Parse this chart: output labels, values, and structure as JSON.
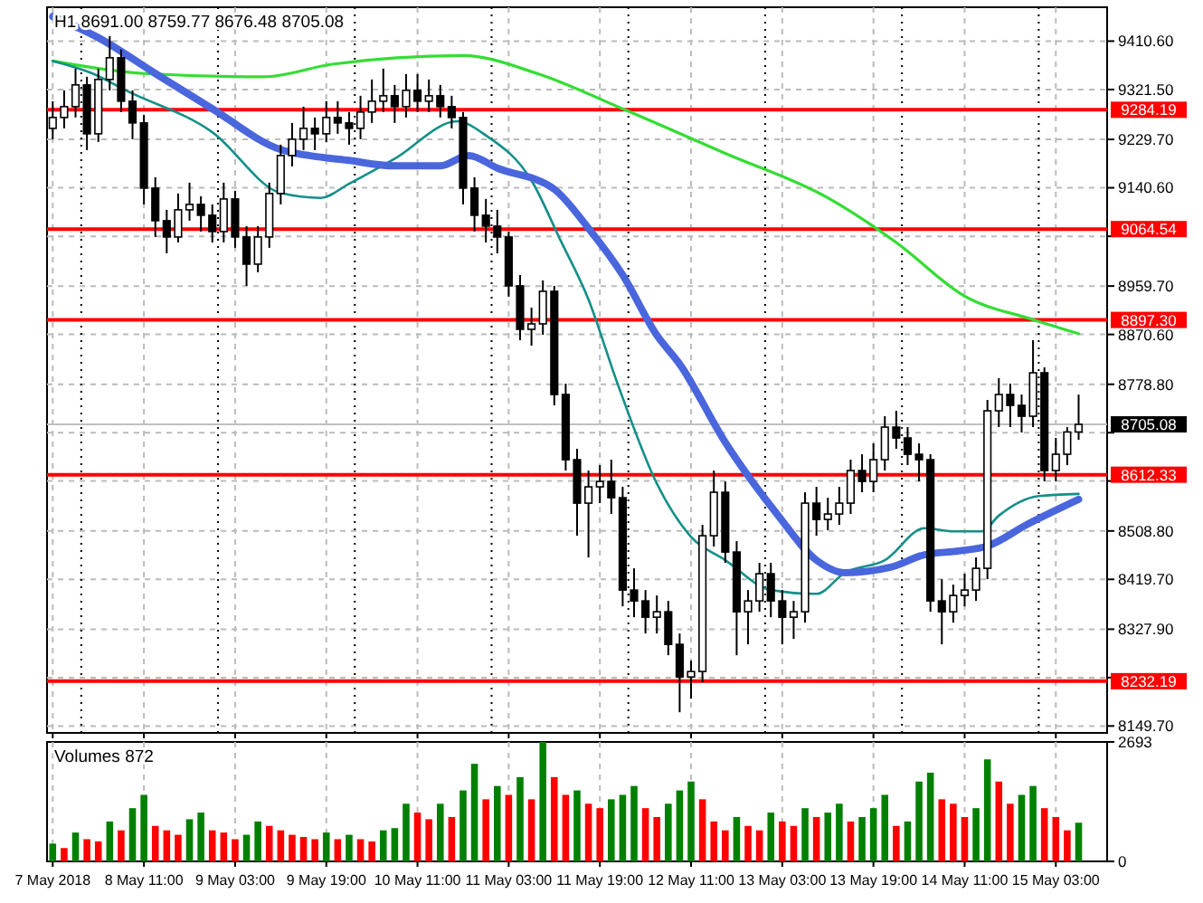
{
  "chart_data": [
    {
      "type": "candlestick",
      "title": "H1  8691.00 8759.77 8676.48 8705.08",
      "x": [
        "2018-05-07T19:00",
        "2018-05-07T21:00",
        "2018-05-07T23:00",
        "2018-05-08T01:00",
        "2018-05-08T03:00",
        "2018-05-08T05:00",
        "2018-05-08T07:00",
        "2018-05-08T09:00",
        "2018-05-08T11:00",
        "2018-05-08T13:00",
        "2018-05-08T15:00",
        "2018-05-08T17:00",
        "2018-05-08T19:00",
        "2018-05-08T21:00",
        "2018-05-08T23:00",
        "2018-05-09T01:00",
        "2018-05-09T03:00",
        "2018-05-09T05:00",
        "2018-05-09T07:00",
        "2018-05-09T09:00",
        "2018-05-09T11:00",
        "2018-05-09T13:00",
        "2018-05-09T15:00",
        "2018-05-09T17:00",
        "2018-05-09T19:00",
        "2018-05-09T21:00",
        "2018-05-09T23:00",
        "2018-05-10T01:00",
        "2018-05-10T03:00",
        "2018-05-10T05:00",
        "2018-05-10T07:00",
        "2018-05-10T09:00",
        "2018-05-10T11:00",
        "2018-05-10T13:00",
        "2018-05-10T15:00",
        "2018-05-10T17:00",
        "2018-05-10T19:00",
        "2018-05-10T21:00",
        "2018-05-10T23:00",
        "2018-05-11T01:00",
        "2018-05-11T03:00",
        "2018-05-11T05:00",
        "2018-05-11T07:00",
        "2018-05-11T09:00",
        "2018-05-11T11:00",
        "2018-05-11T13:00",
        "2018-05-11T15:00",
        "2018-05-11T17:00",
        "2018-05-11T19:00",
        "2018-05-11T21:00",
        "2018-05-11T23:00",
        "2018-05-12T01:00",
        "2018-05-12T03:00",
        "2018-05-12T05:00",
        "2018-05-12T07:00",
        "2018-05-12T09:00",
        "2018-05-12T11:00",
        "2018-05-12T13:00",
        "2018-05-12T15:00",
        "2018-05-12T17:00",
        "2018-05-12T19:00",
        "2018-05-12T21:00",
        "2018-05-12T23:00",
        "2018-05-13T01:00",
        "2018-05-13T03:00",
        "2018-05-13T05:00",
        "2018-05-13T07:00",
        "2018-05-13T09:00",
        "2018-05-13T11:00",
        "2018-05-13T13:00",
        "2018-05-13T15:00",
        "2018-05-13T17:00",
        "2018-05-13T19:00",
        "2018-05-13T21:00",
        "2018-05-13T23:00",
        "2018-05-14T01:00",
        "2018-05-14T03:00",
        "2018-05-14T05:00",
        "2018-05-14T07:00",
        "2018-05-14T09:00",
        "2018-05-14T11:00",
        "2018-05-14T13:00",
        "2018-05-14T15:00",
        "2018-05-14T17:00",
        "2018-05-14T19:00",
        "2018-05-14T21:00",
        "2018-05-14T23:00",
        "2018-05-15T01:00",
        "2018-05-15T03:00",
        "2018-05-15T05:00",
        "2018-05-15T07:00"
      ],
      "ohlc": [
        [
          9250,
          9300,
          9230,
          9270
        ],
        [
          9270,
          9320,
          9250,
          9290
        ],
        [
          9290,
          9360,
          9270,
          9330
        ],
        [
          9330,
          9345,
          9210,
          9240
        ],
        [
          9240,
          9360,
          9225,
          9340
        ],
        [
          9340,
          9420,
          9320,
          9380
        ],
        [
          9380,
          9395,
          9280,
          9300
        ],
        [
          9300,
          9320,
          9230,
          9260
        ],
        [
          9260,
          9275,
          9110,
          9140
        ],
        [
          9140,
          9160,
          9050,
          9080
        ],
        [
          9080,
          9100,
          9020,
          9050
        ],
        [
          9050,
          9130,
          9040,
          9100
        ],
        [
          9100,
          9150,
          9080,
          9110
        ],
        [
          9110,
          9125,
          9060,
          9090
        ],
        [
          9090,
          9110,
          9040,
          9060
        ],
        [
          9060,
          9150,
          9040,
          9120
        ],
        [
          9120,
          9135,
          9030,
          9050
        ],
        [
          9050,
          9070,
          8960,
          9000
        ],
        [
          9000,
          9070,
          8985,
          9050
        ],
        [
          9050,
          9150,
          9030,
          9130
        ],
        [
          9130,
          9220,
          9110,
          9200
        ],
        [
          9200,
          9260,
          9180,
          9230
        ],
        [
          9230,
          9290,
          9210,
          9250
        ],
        [
          9250,
          9270,
          9210,
          9240
        ],
        [
          9240,
          9300,
          9225,
          9270
        ],
        [
          9270,
          9300,
          9240,
          9260
        ],
        [
          9260,
          9280,
          9220,
          9250
        ],
        [
          9250,
          9310,
          9230,
          9280
        ],
        [
          9280,
          9340,
          9260,
          9300
        ],
        [
          9300,
          9360,
          9280,
          9310
        ],
        [
          9310,
          9330,
          9260,
          9290
        ],
        [
          9290,
          9350,
          9270,
          9320
        ],
        [
          9320,
          9350,
          9280,
          9300
        ],
        [
          9300,
          9340,
          9280,
          9310
        ],
        [
          9310,
          9330,
          9270,
          9290
        ],
        [
          9290,
          9310,
          9250,
          9270
        ],
        [
          9270,
          9280,
          9110,
          9140
        ],
        [
          9140,
          9160,
          9060,
          9090
        ],
        [
          9090,
          9120,
          9040,
          9070
        ],
        [
          9070,
          9100,
          9020,
          9050
        ],
        [
          9050,
          9060,
          8940,
          8960
        ],
        [
          8960,
          8980,
          8860,
          8880
        ],
        [
          8880,
          8920,
          8850,
          8890
        ],
        [
          8890,
          8970,
          8870,
          8950
        ],
        [
          8950,
          8960,
          8740,
          8760
        ],
        [
          8760,
          8780,
          8620,
          8640
        ],
        [
          8640,
          8660,
          8500,
          8560
        ],
        [
          8560,
          8620,
          8460,
          8590
        ],
        [
          8590,
          8630,
          8560,
          8600
        ],
        [
          8600,
          8640,
          8540,
          8570
        ],
        [
          8570,
          8590,
          8370,
          8400
        ],
        [
          8400,
          8440,
          8350,
          8380
        ],
        [
          8380,
          8400,
          8320,
          8350
        ],
        [
          8350,
          8390,
          8320,
          8360
        ],
        [
          8360,
          8380,
          8280,
          8300
        ],
        [
          8300,
          8320,
          8175,
          8240
        ],
        [
          8240,
          8270,
          8200,
          8250
        ],
        [
          8250,
          8520,
          8230,
          8500
        ],
        [
          8500,
          8620,
          8480,
          8580
        ],
        [
          8580,
          8600,
          8450,
          8470
        ],
        [
          8470,
          8490,
          8280,
          8360
        ],
        [
          8360,
          8400,
          8300,
          8380
        ],
        [
          8380,
          8450,
          8360,
          8430
        ],
        [
          8430,
          8450,
          8350,
          8380
        ],
        [
          8380,
          8400,
          8300,
          8350
        ],
        [
          8350,
          8380,
          8310,
          8360
        ],
        [
          8360,
          8580,
          8340,
          8560
        ],
        [
          8560,
          8590,
          8500,
          8530
        ],
        [
          8530,
          8570,
          8510,
          8540
        ],
        [
          8540,
          8590,
          8520,
          8560
        ],
        [
          8560,
          8640,
          8540,
          8620
        ],
        [
          8620,
          8650,
          8580,
          8600
        ],
        [
          8600,
          8670,
          8580,
          8640
        ],
        [
          8640,
          8720,
          8620,
          8700
        ],
        [
          8700,
          8730,
          8660,
          8680
        ],
        [
          8680,
          8700,
          8630,
          8650
        ],
        [
          8650,
          8670,
          8600,
          8640
        ],
        [
          8640,
          8650,
          8360,
          8380
        ],
        [
          8380,
          8420,
          8300,
          8360
        ],
        [
          8360,
          8410,
          8340,
          8390
        ],
        [
          8390,
          8430,
          8370,
          8400
        ],
        [
          8400,
          8460,
          8380,
          8440
        ],
        [
          8440,
          8750,
          8420,
          8730
        ],
        [
          8730,
          8790,
          8700,
          8760
        ],
        [
          8760,
          8780,
          8700,
          8740
        ],
        [
          8740,
          8760,
          8690,
          8720
        ],
        [
          8720,
          8860,
          8700,
          8800
        ],
        [
          8800,
          8810,
          8600,
          8620
        ],
        [
          8620,
          8680,
          8600,
          8650
        ],
        [
          8650,
          8700,
          8630,
          8691
        ],
        [
          8691.0,
          8759.77,
          8676.48,
          8705.08
        ]
      ],
      "series": [
        {
          "type": "line",
          "color": "#33dd33",
          "x": [
            "2018-05-07T19:00",
            "2018-05-08T11:00",
            "2018-05-09T08:00",
            "2018-05-09T20:00",
            "2018-05-10T19:00",
            "2018-05-11T08:00",
            "2018-05-11T23:00",
            "2018-05-12T17:00",
            "2018-05-13T11:00",
            "2018-05-13T23:00",
            "2018-05-14T11:00",
            "2018-05-14T23:00",
            "2018-05-15T07:00"
          ],
          "values": [
            9374,
            9351,
            9345,
            9368,
            9384,
            9351,
            9286,
            9204,
            9122,
            9040,
            8941,
            8898,
            8872
          ]
        },
        {
          "type": "line",
          "color": "#138f88",
          "x": [
            "2018-05-07T19:00",
            "2018-05-08T02:00",
            "2018-05-08T08:00",
            "2018-05-08T23:00",
            "2018-05-09T11:00",
            "2018-05-09T18:00",
            "2018-05-09T23:00",
            "2018-05-10T07:00",
            "2018-05-10T18:00",
            "2018-05-10T23:00",
            "2018-05-11T07:00",
            "2018-05-11T12:00",
            "2018-05-11T17:00",
            "2018-05-11T22:00",
            "2018-05-12T05:00",
            "2018-05-12T11:00",
            "2018-05-12T17:00",
            "2018-05-13T01:00",
            "2018-05-13T09:00",
            "2018-05-13T14:00",
            "2018-05-13T21:00",
            "2018-05-14T04:00",
            "2018-05-14T09:00",
            "2018-05-14T14:00",
            "2018-05-14T17:00",
            "2018-05-15T00:00",
            "2018-05-15T07:00"
          ],
          "values": [
            9374,
            9351,
            9319,
            9243,
            9131,
            9122,
            9148,
            9194,
            9263,
            9237,
            9154,
            9046,
            8935,
            8783,
            8596,
            8498,
            8455,
            8400,
            8393,
            8432,
            8455,
            8514,
            8508,
            8508,
            8537,
            8573,
            8577
          ]
        },
        {
          "type": "line",
          "color": "#4a66dd",
          "x": [
            "2018-05-07T19:00",
            "2018-05-08T03:00",
            "2018-05-08T13:00",
            "2018-05-08T23:00",
            "2018-05-09T11:00",
            "2018-05-09T23:00",
            "2018-05-10T07:00",
            "2018-05-10T15:00",
            "2018-05-10T20:00",
            "2018-05-11T01:00",
            "2018-05-11T11:00",
            "2018-05-11T17:00",
            "2018-05-11T23:00",
            "2018-05-12T05:00",
            "2018-05-12T09:00",
            "2018-05-12T17:00",
            "2018-05-13T02:00",
            "2018-05-13T09:00",
            "2018-05-13T14:00",
            "2018-05-13T22:00",
            "2018-05-14T04:00",
            "2018-05-14T10:00",
            "2018-05-14T15:00",
            "2018-05-14T22:00",
            "2018-05-15T07:00"
          ],
          "values": [
            9456,
            9417,
            9351,
            9286,
            9211,
            9191,
            9181,
            9181,
            9200,
            9177,
            9138,
            9066,
            8980,
            8869,
            8816,
            8672,
            8541,
            8455,
            8432,
            8442,
            8465,
            8472,
            8481,
            8521,
            8567
          ]
        }
      ],
      "ref_lines": [
        {
          "axis": "y",
          "value": 9284.19,
          "label": "9284.19",
          "color": "#ff0000"
        },
        {
          "axis": "y",
          "value": 9064.54,
          "label": "9064.54",
          "color": "#ff0000"
        },
        {
          "axis": "y",
          "value": 8897.3,
          "label": "8897.30",
          "color": "#ff0000"
        },
        {
          "axis": "y",
          "value": 8612.33,
          "label": "8612.33",
          "color": "#ff0000"
        },
        {
          "axis": "y",
          "value": 8232.19,
          "label": "8232.19",
          "color": "#ff0000"
        },
        {
          "axis": "y",
          "value": 8705.08,
          "label": "8705.08",
          "color": "#c0c0c0"
        },
        {
          "axis": "x",
          "value": "2018-05-08T00:00",
          "color": "#000000",
          "line_style": "dotted"
        },
        {
          "axis": "x",
          "value": "2018-05-09T00:00",
          "color": "#000000",
          "line_style": "dotted"
        },
        {
          "axis": "x",
          "value": "2018-05-10T00:00",
          "color": "#000000",
          "line_style": "dotted"
        },
        {
          "axis": "x",
          "value": "2018-05-11T00:00",
          "color": "#000000",
          "line_style": "dotted"
        },
        {
          "axis": "x",
          "value": "2018-05-12T00:00",
          "color": "#000000",
          "line_style": "dotted"
        },
        {
          "axis": "x",
          "value": "2018-05-13T00:00",
          "color": "#000000",
          "line_style": "dotted"
        },
        {
          "axis": "x",
          "value": "2018-05-14T00:00",
          "color": "#000000",
          "line_style": "dotted"
        },
        {
          "axis": "x",
          "value": "2018-05-15T00:00",
          "color": "#000000",
          "line_style": "dotted"
        }
      ],
      "xlim": [
        "2018-05-07T18:00",
        "2018-05-15T12:00"
      ],
      "xticks": [
        {
          "value": "2018-05-07T19:00",
          "label": null
        },
        {
          "value": "2018-05-08T11:00",
          "label": null
        },
        {
          "value": "2018-05-09T03:00",
          "label": null
        },
        {
          "value": "2018-05-09T19:00",
          "label": null
        },
        {
          "value": "2018-05-10T11:00",
          "label": null
        },
        {
          "value": "2018-05-11T03:00",
          "label": null
        },
        {
          "value": "2018-05-11T19:00",
          "label": null
        },
        {
          "value": "2018-05-12T11:00",
          "label": null
        },
        {
          "value": "2018-05-13T03:00",
          "label": null
        },
        {
          "value": "2018-05-13T19:00",
          "label": null
        },
        {
          "value": "2018-05-14T11:00",
          "label": null
        },
        {
          "value": "2018-05-15T03:00",
          "label": null
        }
      ],
      "ylim": [
        8137,
        9473
      ],
      "yticks": [
        {
          "value": 9410.6,
          "label": "9410.60"
        },
        {
          "value": 9321.5,
          "label": "9321.50"
        },
        {
          "value": 9229.7,
          "label": "9229.70"
        },
        {
          "value": 9140.6,
          "label": "9140.60"
        },
        {
          "value": 9051.3,
          "label": null
        },
        {
          "value": 8959.7,
          "label": "8959.70"
        },
        {
          "value": 8870.6,
          "label": "8870.60"
        },
        {
          "value": 8778.8,
          "label": "8778.80"
        },
        {
          "value": 8689.7,
          "label": null
        },
        {
          "value": 8600.8,
          "label": null
        },
        {
          "value": 8508.8,
          "label": "8508.80"
        },
        {
          "value": 8419.7,
          "label": "8419.70"
        },
        {
          "value": 8327.9,
          "label": "8327.90"
        },
        {
          "value": 8238.8,
          "label": null
        },
        {
          "value": 8149.7,
          "label": "8149.70"
        }
      ],
      "grid": true,
      "tick_labels": "y"
    },
    {
      "type": "bar",
      "title": "Volumes 872",
      "x": [
        "2018-05-07T19:00",
        "2018-05-07T21:00",
        "2018-05-07T23:00",
        "2018-05-08T01:00",
        "2018-05-08T03:00",
        "2018-05-08T05:00",
        "2018-05-08T07:00",
        "2018-05-08T09:00",
        "2018-05-08T11:00",
        "2018-05-08T13:00",
        "2018-05-08T15:00",
        "2018-05-08T17:00",
        "2018-05-08T19:00",
        "2018-05-08T21:00",
        "2018-05-08T23:00",
        "2018-05-09T01:00",
        "2018-05-09T03:00",
        "2018-05-09T05:00",
        "2018-05-09T07:00",
        "2018-05-09T09:00",
        "2018-05-09T11:00",
        "2018-05-09T13:00",
        "2018-05-09T15:00",
        "2018-05-09T17:00",
        "2018-05-09T19:00",
        "2018-05-09T21:00",
        "2018-05-09T23:00",
        "2018-05-10T01:00",
        "2018-05-10T03:00",
        "2018-05-10T05:00",
        "2018-05-10T07:00",
        "2018-05-10T09:00",
        "2018-05-10T11:00",
        "2018-05-10T13:00",
        "2018-05-10T15:00",
        "2018-05-10T17:00",
        "2018-05-10T19:00",
        "2018-05-10T21:00",
        "2018-05-10T23:00",
        "2018-05-11T01:00",
        "2018-05-11T03:00",
        "2018-05-11T05:00",
        "2018-05-11T07:00",
        "2018-05-11T09:00",
        "2018-05-11T11:00",
        "2018-05-11T13:00",
        "2018-05-11T15:00",
        "2018-05-11T17:00",
        "2018-05-11T19:00",
        "2018-05-11T21:00",
        "2018-05-11T23:00",
        "2018-05-12T01:00",
        "2018-05-12T03:00",
        "2018-05-12T05:00",
        "2018-05-12T07:00",
        "2018-05-12T09:00",
        "2018-05-12T11:00",
        "2018-05-12T13:00",
        "2018-05-12T15:00",
        "2018-05-12T17:00",
        "2018-05-12T19:00",
        "2018-05-12T21:00",
        "2018-05-12T23:00",
        "2018-05-13T01:00",
        "2018-05-13T03:00",
        "2018-05-13T05:00",
        "2018-05-13T07:00",
        "2018-05-13T09:00",
        "2018-05-13T11:00",
        "2018-05-13T13:00",
        "2018-05-13T15:00",
        "2018-05-13T17:00",
        "2018-05-13T19:00",
        "2018-05-13T21:00",
        "2018-05-13T23:00",
        "2018-05-14T01:00",
        "2018-05-14T03:00",
        "2018-05-14T05:00",
        "2018-05-14T07:00",
        "2018-05-14T09:00",
        "2018-05-14T11:00",
        "2018-05-14T13:00",
        "2018-05-14T15:00",
        "2018-05-14T17:00",
        "2018-05-14T19:00",
        "2018-05-14T21:00",
        "2018-05-14T23:00",
        "2018-05-15T01:00",
        "2018-05-15T03:00",
        "2018-05-15T05:00",
        "2018-05-15T07:00"
      ],
      "values": [
        400,
        300,
        650,
        500,
        450,
        900,
        700,
        1200,
        1500,
        800,
        700,
        600,
        950,
        1100,
        700,
        650,
        500,
        600,
        900,
        800,
        700,
        600,
        550,
        500,
        650,
        500,
        600,
        500,
        450,
        700,
        750,
        1300,
        1100,
        950,
        1300,
        1000,
        1600,
        2200,
        1400,
        1700,
        1500,
        1900,
        1400,
        2693,
        1900,
        1500,
        1600,
        1300,
        1200,
        1400,
        1500,
        1700,
        1200,
        1000,
        1300,
        1600,
        1800,
        1400,
        900,
        700,
        1000,
        800,
        700,
        1100,
        900,
        800,
        1200,
        1000,
        1100,
        1300,
        900,
        1000,
        1200,
        1500,
        800,
        900,
        1800,
        2000,
        1400,
        1300,
        1000,
        1200,
        2300,
        1800,
        1300,
        1500,
        1700,
        1200,
        1000,
        700,
        872
      ],
      "colors": [
        "#008000",
        "#ff0000",
        "#008000",
        "#ff0000",
        "#ff0000",
        "#008000",
        "#ff0000",
        "#008000",
        "#008000",
        "#ff0000",
        "#ff0000",
        "#ff0000",
        "#008000",
        "#008000",
        "#ff0000",
        "#ff0000",
        "#ff0000",
        "#008000",
        "#008000",
        "#ff0000",
        "#ff0000",
        "#ff0000",
        "#ff0000",
        "#ff0000",
        "#008000",
        "#ff0000",
        "#008000",
        "#ff0000",
        "#ff0000",
        "#008000",
        "#008000",
        "#008000",
        "#ff0000",
        "#ff0000",
        "#008000",
        "#ff0000",
        "#008000",
        "#008000",
        "#ff0000",
        "#008000",
        "#ff0000",
        "#008000",
        "#ff0000",
        "#008000",
        "#ff0000",
        "#ff0000",
        "#008000",
        "#ff0000",
        "#ff0000",
        "#008000",
        "#008000",
        "#008000",
        "#ff0000",
        "#ff0000",
        "#008000",
        "#008000",
        "#008000",
        "#ff0000",
        "#ff0000",
        "#ff0000",
        "#008000",
        "#ff0000",
        "#ff0000",
        "#008000",
        "#ff0000",
        "#ff0000",
        "#008000",
        "#ff0000",
        "#008000",
        "#008000",
        "#ff0000",
        "#008000",
        "#008000",
        "#008000",
        "#ff0000",
        "#008000",
        "#008000",
        "#008000",
        "#ff0000",
        "#ff0000",
        "#ff0000",
        "#008000",
        "#008000",
        "#ff0000",
        "#ff0000",
        "#008000",
        "#008000",
        "#ff0000",
        "#ff0000",
        "#ff0000",
        "#008000"
      ],
      "xlim": [
        "2018-05-07T18:00",
        "2018-05-15T12:00"
      ],
      "xticks": [
        {
          "value": "2018-05-07T19:00",
          "label": "7 May 2018"
        },
        {
          "value": "2018-05-08T11:00",
          "label": "8 May 11:00"
        },
        {
          "value": "2018-05-09T03:00",
          "label": "9 May 03:00"
        },
        {
          "value": "2018-05-09T19:00",
          "label": "9 May 19:00"
        },
        {
          "value": "2018-05-10T11:00",
          "label": "10 May 11:00"
        },
        {
          "value": "2018-05-11T03:00",
          "label": "11 May 03:00"
        },
        {
          "value": "2018-05-11T19:00",
          "label": "11 May 19:00"
        },
        {
          "value": "2018-05-12T11:00",
          "label": "12 May 11:00"
        },
        {
          "value": "2018-05-13T03:00",
          "label": "13 May 03:00"
        },
        {
          "value": "2018-05-13T19:00",
          "label": "13 May 19:00"
        },
        {
          "value": "2018-05-14T11:00",
          "label": "14 May 11:00"
        },
        {
          "value": "2018-05-15T03:00",
          "label": "15 May 03:00"
        }
      ],
      "ylim": [
        0,
        2693
      ],
      "yticks": [
        2693,
        0
      ],
      "grid": "x"
    }
  ]
}
